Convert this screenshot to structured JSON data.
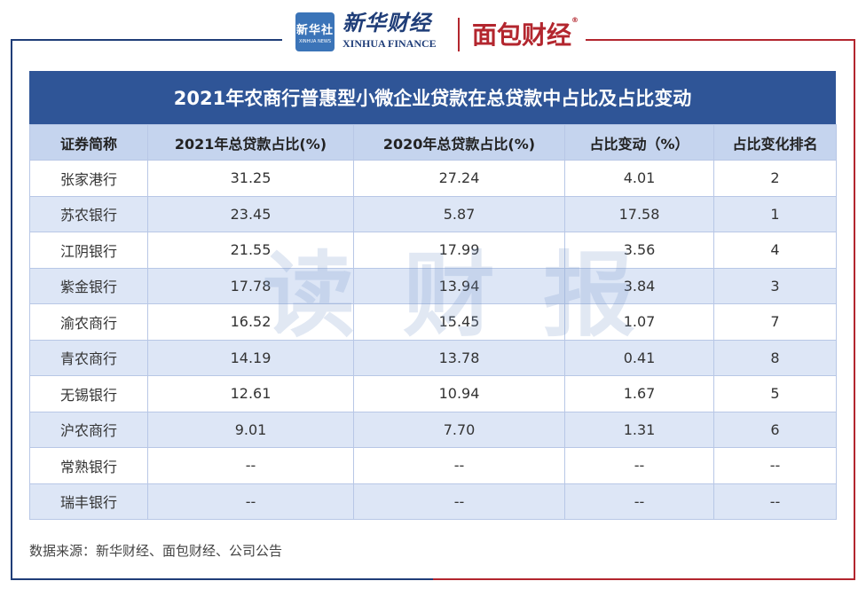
{
  "header": {
    "seal_text": "新华社",
    "seal_sub": "XINHUA NEWS",
    "xinhua_cn": "新华财经",
    "xinhua_en": "XINHUA FINANCE",
    "mianbao": "面包财经",
    "mianbao_mark": "®"
  },
  "watermark": [
    "读",
    "财",
    "报"
  ],
  "table": {
    "title": "2021年农商行普惠型小微企业贷款在总贷款中占比及占比变动",
    "headers": [
      "证券简称",
      "2021年总贷款占比(%)",
      "2020年总贷款占比(%)",
      "占比变动（%）",
      "占比变化排名"
    ],
    "rows": [
      [
        "张家港行",
        "31.25",
        "27.24",
        "4.01",
        "2"
      ],
      [
        "苏农银行",
        "23.45",
        "5.87",
        "17.58",
        "1"
      ],
      [
        "江阴银行",
        "21.55",
        "17.99",
        "3.56",
        "4"
      ],
      [
        "紫金银行",
        "17.78",
        "13.94",
        "3.84",
        "3"
      ],
      [
        "渝农商行",
        "16.52",
        "15.45",
        "1.07",
        "7"
      ],
      [
        "青农商行",
        "14.19",
        "13.78",
        "0.41",
        "8"
      ],
      [
        "无锡银行",
        "12.61",
        "10.94",
        "1.67",
        "5"
      ],
      [
        "沪农商行",
        "9.01",
        "7.70",
        "1.31",
        "6"
      ],
      [
        "常熟银行",
        "--",
        "--",
        "--",
        "--"
      ],
      [
        "瑞丰银行",
        "--",
        "--",
        "--",
        "--"
      ]
    ]
  },
  "source": "数据来源：新华财经、面包财经、公司公告",
  "colors": {
    "title_bg": "#2f5597",
    "header_bg": "#c5d4ee",
    "stripe_bg": "#dde6f6",
    "xinhua_blue": "#1f3d78",
    "mianbao_red": "#b3262e"
  }
}
